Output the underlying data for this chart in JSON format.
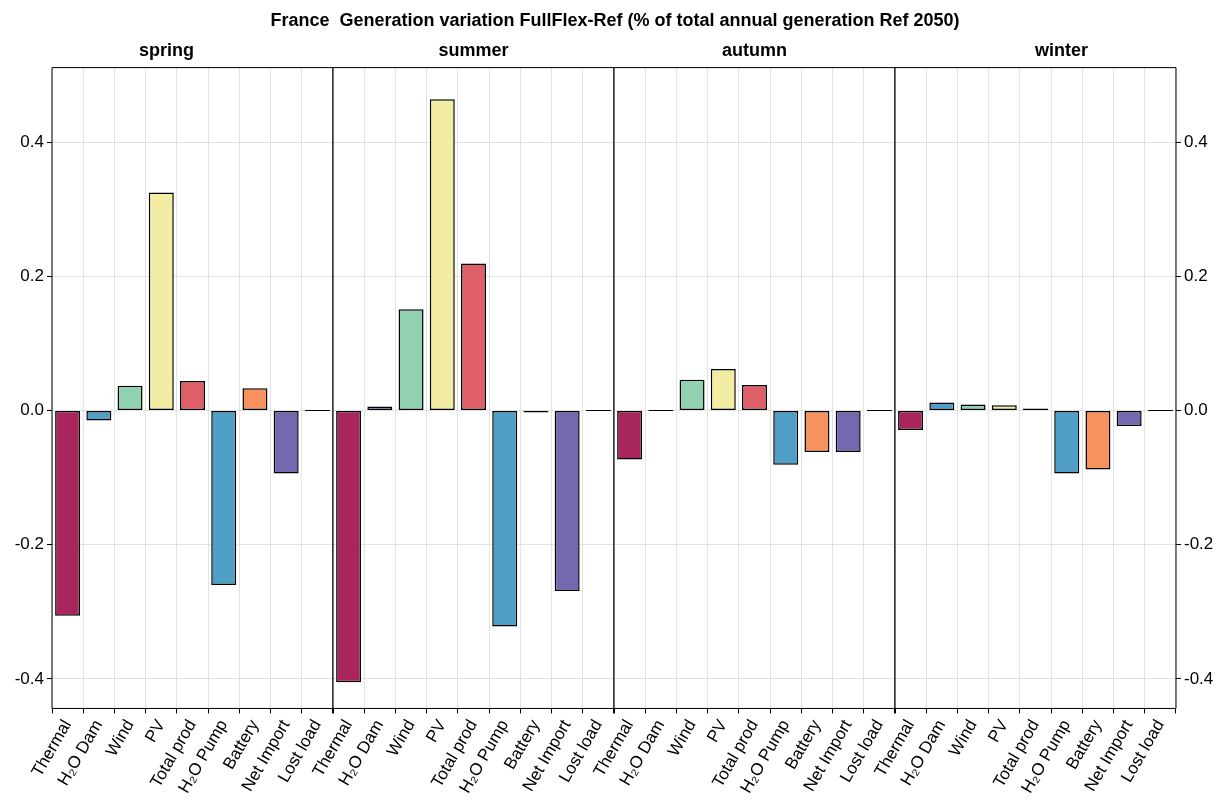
{
  "chart_data": [
    {
      "type": "bar",
      "title": "spring",
      "annotations": [
        "France  Generation variation FullFlex-Ref (% of total annual generation Ref 2050)"
      ],
      "categories": [
        "Thermal",
        "H₂O Dam",
        "Wind",
        "PV",
        "Total prod",
        "H₂O Pump",
        "Battery",
        "Net Import",
        "Lost load"
      ],
      "values": [
        -0.306,
        -0.015,
        0.037,
        0.325,
        0.044,
        -0.26,
        0.033,
        -0.094,
        0
      ],
      "colors": [
        "#a8265c",
        "#4f9ec6",
        "#8fd1b0",
        "#f3eca3",
        "#de5f68",
        "#4f9ec6",
        "#f5925e",
        "#7468b0",
        "#000000"
      ],
      "ylim": [
        -0.444,
        0.511
      ],
      "yticks": [
        -0.4,
        -0.2,
        {
          "value": 0,
          "label": "0.0"
        },
        0.2,
        0.4
      ],
      "grid": true
    },
    {
      "type": "bar",
      "title": "summer",
      "categories": [
        "Thermal",
        "H₂O Dam",
        "Wind",
        "PV",
        "Total prod",
        "H₂O Pump",
        "Battery",
        "Net Import",
        "Lost load"
      ],
      "values": [
        -0.405,
        0.006,
        0.151,
        0.464,
        0.219,
        -0.322,
        -0.003,
        -0.269,
        0
      ],
      "colors": [
        "#a8265c",
        "#4f9ec6",
        "#8fd1b0",
        "#f3eca3",
        "#de5f68",
        "#4f9ec6",
        "#000000",
        "#7468b0",
        "#000000"
      ],
      "ylim": [
        -0.444,
        0.511
      ],
      "yticks": [
        -0.4,
        -0.2,
        0,
        0.2,
        0.4
      ],
      "grid": true,
      "tick_labels": "x"
    },
    {
      "type": "bar",
      "title": "autumn",
      "categories": [
        "Thermal",
        "H₂O Dam",
        "Wind",
        "PV",
        "Total prod",
        "H₂O Pump",
        "Battery",
        "Net Import",
        "Lost load"
      ],
      "values": [
        -0.073,
        0,
        0.046,
        0.062,
        0.038,
        -0.081,
        -0.062,
        -0.062,
        0
      ],
      "colors": [
        "#a8265c",
        "#000000",
        "#8fd1b0",
        "#f3eca3",
        "#de5f68",
        "#4f9ec6",
        "#f5925e",
        "#7468b0",
        "#000000"
      ],
      "ylim": [
        -0.444,
        0.511
      ],
      "yticks": [
        -0.4,
        -0.2,
        0,
        0.2,
        0.4
      ],
      "grid": true,
      "tick_labels": "x"
    },
    {
      "type": "bar",
      "title": "winter",
      "categories": [
        "Thermal",
        "H₂O Dam",
        "Wind",
        "PV",
        "Total prod",
        "H₂O Pump",
        "Battery",
        "Net Import",
        "Lost load"
      ],
      "values": [
        -0.029,
        0.012,
        0.009,
        0.008,
        0.003,
        -0.094,
        -0.088,
        -0.023,
        0
      ],
      "colors": [
        "#a8265c",
        "#4f9ec6",
        "#8fd1b0",
        "#f3eca3",
        "#000000",
        "#4f9ec6",
        "#f5925e",
        "#7468b0",
        "#000000"
      ],
      "ylim": [
        -0.444,
        0.511
      ],
      "yticks": [
        -0.4,
        -0.2,
        {
          "value": 0,
          "label": "0.0"
        },
        0.2,
        0.4
      ],
      "grid": true
    }
  ]
}
